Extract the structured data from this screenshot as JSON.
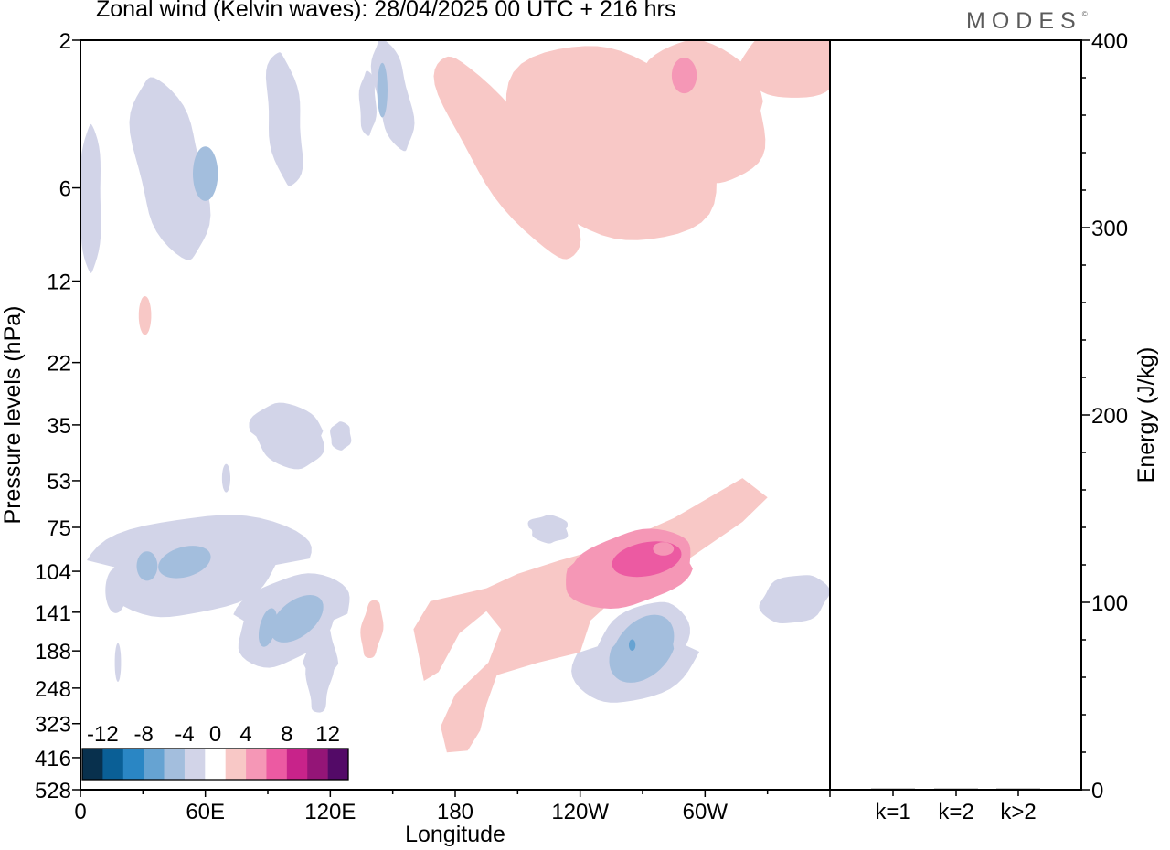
{
  "header": {
    "title": "Zonal wind (Kelvin waves):  28/04/2025  00 UTC  + 216 hrs",
    "logo": "MODES"
  },
  "chart_data": [
    {
      "type": "heatmap",
      "title": "Zonal wind (Kelvin waves):  28/04/2025  00 UTC  + 216 hrs",
      "xlabel": "Longitude",
      "ylabel": "Pressure levels (hPa)",
      "x_ticks": [
        "0",
        "60E",
        "120E",
        "180",
        "120W",
        "60W"
      ],
      "x_tick_values_deg_east": [
        0,
        60,
        120,
        180,
        240,
        300
      ],
      "xlim_deg_east": [
        0,
        360
      ],
      "y_ticks": [
        "2",
        "6",
        "12",
        "22",
        "35",
        "53",
        "75",
        "104",
        "141",
        "188",
        "248",
        "323",
        "416",
        "528"
      ],
      "y_scale": "log",
      "ylim": [
        528,
        2
      ],
      "colorbar": {
        "labels": [
          "-12",
          "-8",
          "-4",
          "0",
          "4",
          "8",
          "12"
        ],
        "bin_edges": [
          -14,
          -12,
          -10,
          -8,
          -6,
          -4,
          -2,
          2,
          4,
          6,
          8,
          10,
          12,
          14
        ],
        "colors": [
          "#08304d",
          "#0a5f96",
          "#2a86c4",
          "#66a3d2",
          "#a3bedd",
          "#d2d4e8",
          "#ffffff",
          "#f8c8c6",
          "#f597b6",
          "#ec5aa2",
          "#c8238a",
          "#941577",
          "#530a67"
        ],
        "placement": "bottom-left inside plot"
      },
      "grid": false,
      "features": [
        {
          "sign": "positive",
          "max_level": 8,
          "region_deg_east": [
            200,
            320
          ],
          "level_hpa": [
            75,
            150
          ],
          "peak_deg_east": 270,
          "peak_hpa": 95
        },
        {
          "sign": "positive",
          "max_level": 2,
          "region_deg_east": [
            160,
            280
          ],
          "level_hpa": [
            100,
            410
          ]
        },
        {
          "sign": "negative",
          "max_level": -6,
          "region_deg_east": [
            252,
            285
          ],
          "level_hpa": [
            130,
            260
          ]
        },
        {
          "sign": "negative",
          "max_level": -4,
          "region_deg_east": [
            85,
            115
          ],
          "level_hpa": [
            104,
            200
          ]
        },
        {
          "sign": "negative",
          "max_level": -4,
          "region_deg_east": [
            10,
            95
          ],
          "level_hpa": [
            70,
            150
          ]
        },
        {
          "sign": "positive",
          "max_level": 2,
          "region_deg_east": [
            180,
            360
          ],
          "level_hpa": [
            2,
            10
          ]
        },
        {
          "sign": "negative",
          "max_level": -4,
          "region_deg_east": [
            0,
            150
          ],
          "level_hpa": [
            2,
            10
          ]
        }
      ]
    },
    {
      "type": "bar",
      "ylabel": "Energy (J/kg)",
      "categories": [
        "k=1",
        "k=2",
        "k>2"
      ],
      "values": [
        0.3,
        0.2,
        0.2
      ],
      "ylim": [
        0,
        400
      ],
      "y_ticks": [
        "0",
        "100",
        "200",
        "300",
        "400"
      ]
    }
  ]
}
